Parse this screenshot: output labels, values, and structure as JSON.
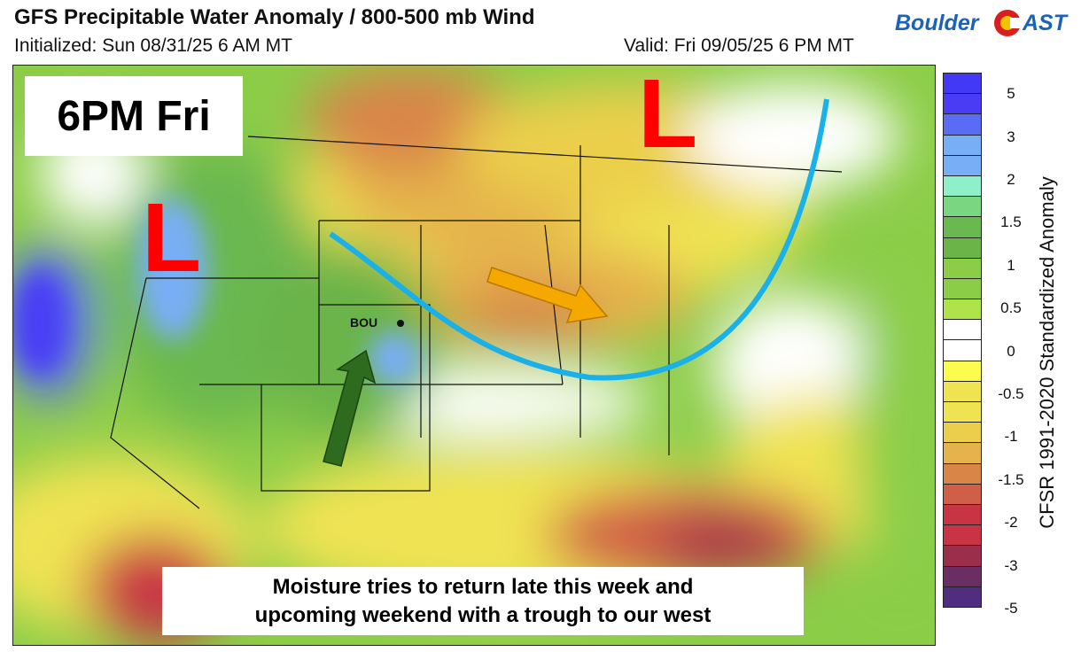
{
  "header": {
    "title": "GFS Precipitable Water Anomaly / 800-500 mb Wind",
    "initialized": "Initialized: Sun 08/31/25 6 AM MT",
    "valid": "Valid: Fri 09/05/25 6 PM MT"
  },
  "logo": {
    "text": "BoulderCAST",
    "colors": {
      "text": "#1a63b8",
      "ring": "#d81e1e",
      "sun": "#f5c400"
    }
  },
  "map": {
    "time_label": "6PM Fri",
    "low_label": "L",
    "station_label": "BOU",
    "caption_line1": "Moisture tries to return late this week and",
    "caption_line2": "upcoming weekend with a trough to our west",
    "annotation_colors": {
      "low": "#ff0000",
      "trough_line": "#1ab0e8",
      "dry_arrow": "#f5a800",
      "moist_arrow": "#2e6b1e"
    }
  },
  "colorbar": {
    "label": "CFSR 1991-2020 Standardized Anomaly",
    "ticks": [
      "5",
      "3",
      "2",
      "1.5",
      "1",
      "0.5",
      "0",
      "-0.5",
      "-1",
      "-1.5",
      "-2",
      "-3",
      "-5"
    ],
    "colors": [
      "#4338f5",
      "#4a3cf5",
      "#5a6cf5",
      "#78aef5",
      "#78aef5",
      "#8ef0c8",
      "#7ad680",
      "#6ab850",
      "#6ab448",
      "#8ccd48",
      "#8ccd48",
      "#aee44a",
      "#ffffff",
      "#ffffff",
      "#fbfb50",
      "#efe352",
      "#efe352",
      "#ebcf4c",
      "#e5b34c",
      "#d98548",
      "#d15e46",
      "#c93444",
      "#c93444",
      "#9b2e4a",
      "#6a2e62",
      "#4f2e80"
    ]
  }
}
